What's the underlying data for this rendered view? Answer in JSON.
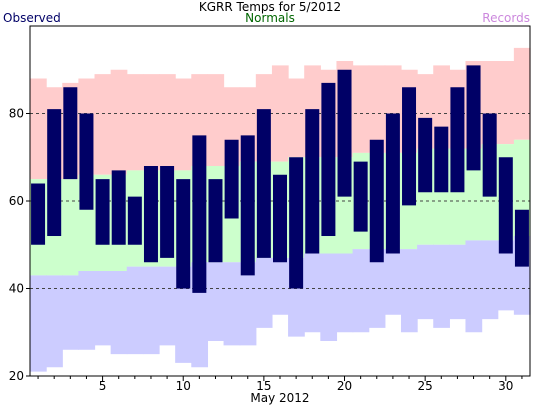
{
  "chart_data": {
    "type": "bar",
    "title": "KGRR Temps for 5/2012",
    "xlabel": "May 2012",
    "ylabel": "",
    "xlim": [
      0.5,
      31.5
    ],
    "ylim": [
      20,
      100
    ],
    "x_ticks": [
      5,
      10,
      15,
      20,
      25,
      30
    ],
    "y_ticks": [
      20,
      40,
      60,
      80
    ],
    "grid_lines": [
      40,
      60,
      80
    ],
    "legend": {
      "observed": "Observed",
      "normals": "Normals",
      "records": "Records"
    },
    "days": [
      1,
      2,
      3,
      4,
      5,
      6,
      7,
      8,
      9,
      10,
      11,
      12,
      13,
      14,
      15,
      16,
      17,
      18,
      19,
      20,
      21,
      22,
      23,
      24,
      25,
      26,
      27,
      28,
      29,
      30,
      31
    ],
    "record_high": [
      88,
      86,
      87,
      88,
      89,
      90,
      89,
      89,
      89,
      88,
      89,
      89,
      86,
      86,
      89,
      91,
      88,
      91,
      90,
      92,
      91,
      91,
      91,
      90,
      89,
      91,
      90,
      92,
      92,
      92,
      95
    ],
    "normal_high": [
      65,
      65,
      65,
      66,
      66,
      66,
      67,
      67,
      67,
      67,
      68,
      68,
      68,
      69,
      69,
      69,
      70,
      70,
      70,
      70,
      71,
      71,
      71,
      71,
      72,
      72,
      72,
      72,
      73,
      73,
      74
    ],
    "normal_low": [
      43,
      43,
      43,
      44,
      44,
      44,
      45,
      45,
      45,
      45,
      46,
      46,
      46,
      46,
      47,
      47,
      47,
      48,
      48,
      48,
      49,
      49,
      49,
      49,
      50,
      50,
      50,
      51,
      51,
      51,
      52
    ],
    "record_low": [
      21,
      22,
      26,
      26,
      27,
      25,
      25,
      25,
      27,
      23,
      22,
      28,
      27,
      27,
      31,
      34,
      29,
      30,
      28,
      30,
      30,
      31,
      34,
      30,
      33,
      31,
      33,
      30,
      33,
      35,
      34
    ],
    "observed_high": [
      64,
      81,
      86,
      80,
      65,
      67,
      61,
      68,
      68,
      65,
      75,
      65,
      74,
      75,
      81,
      66,
      70,
      81,
      87,
      90,
      69,
      74,
      80,
      86,
      79,
      77,
      86,
      91,
      80,
      70,
      58
    ],
    "observed_low": [
      50,
      52,
      65,
      58,
      50,
      50,
      50,
      46,
      47,
      40,
      39,
      46,
      56,
      43,
      47,
      46,
      40,
      48,
      52,
      61,
      53,
      46,
      48,
      59,
      62,
      62,
      62,
      67,
      61,
      48,
      45
    ],
    "colors": {
      "record_band": "#ffcccc",
      "normal_band": "#ccffcc",
      "low_band": "#ccccff",
      "observed_bar": "#000066",
      "observed_text": "#000066",
      "normals_text": "#006600",
      "records_text": "#cc88dd"
    }
  }
}
